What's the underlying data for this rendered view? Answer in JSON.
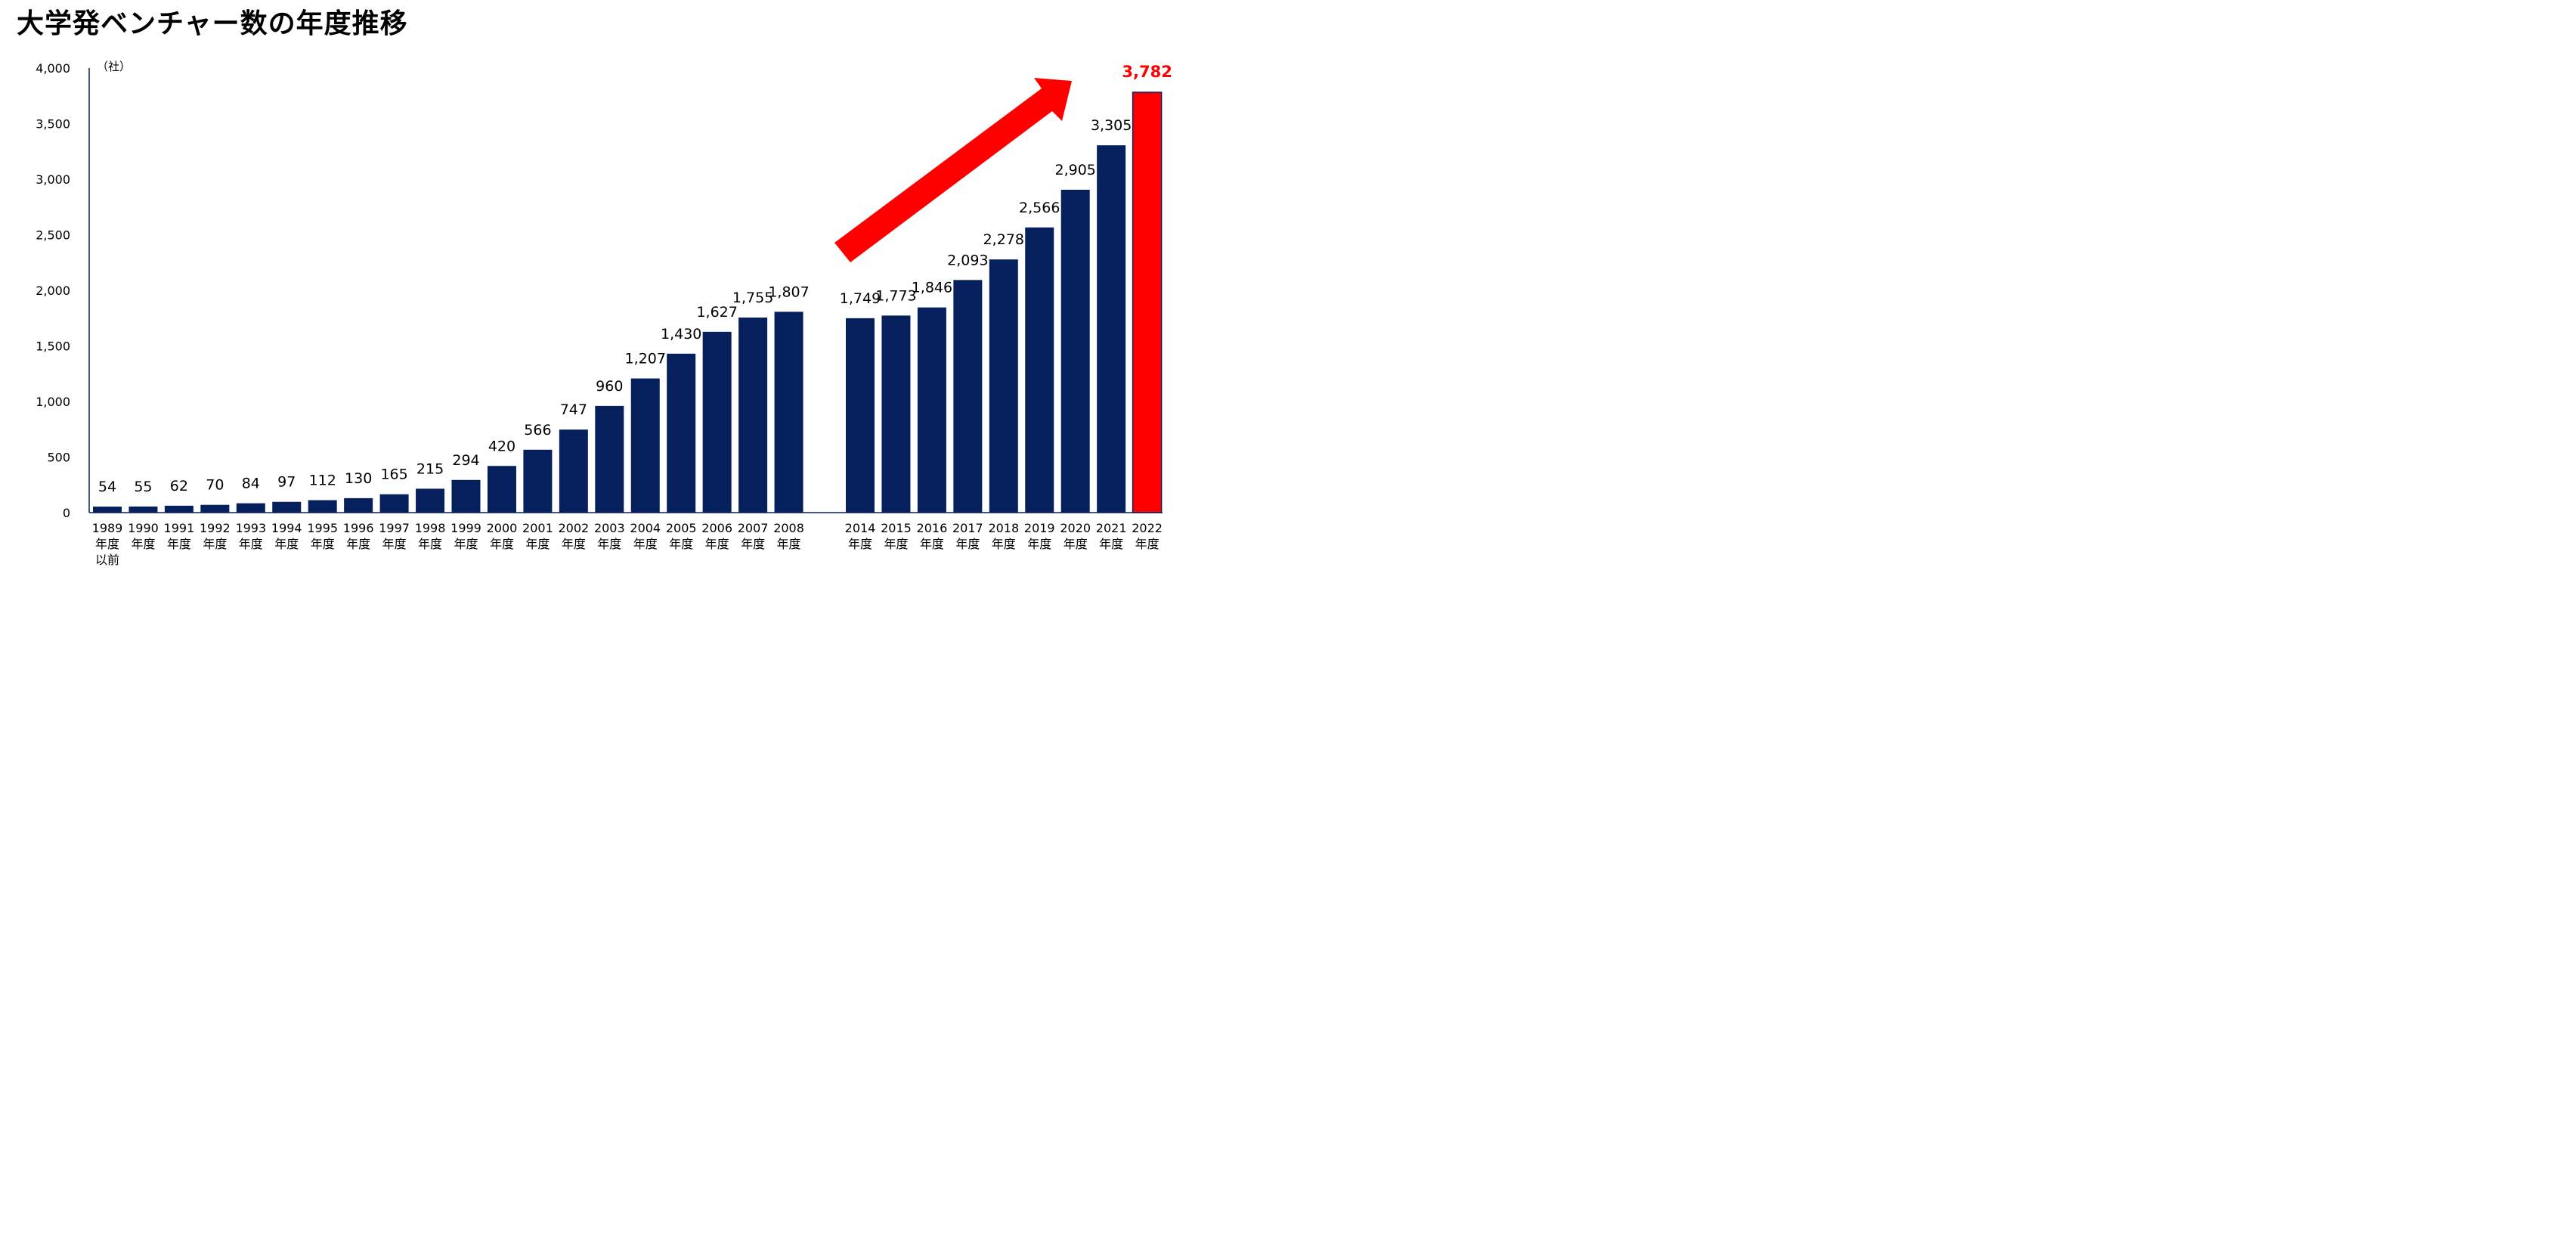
{
  "title": "大学発ベンチャー数の年度推移",
  "chart_data": {
    "type": "bar",
    "unit": "（社）",
    "ylim": [
      0,
      4000
    ],
    "yticks": [
      "0",
      "500",
      "1,000",
      "1,500",
      "2,000",
      "2,500",
      "3,000",
      "3,500",
      "4,000"
    ],
    "grid": false,
    "categories": [
      [
        "1989",
        "年度",
        "以前"
      ],
      [
        "1990",
        "年度"
      ],
      [
        "1991",
        "年度"
      ],
      [
        "1992",
        "年度"
      ],
      [
        "1993",
        "年度"
      ],
      [
        "1994",
        "年度"
      ],
      [
        "1995",
        "年度"
      ],
      [
        "1996",
        "年度"
      ],
      [
        "1997",
        "年度"
      ],
      [
        "1998",
        "年度"
      ],
      [
        "1999",
        "年度"
      ],
      [
        "2000",
        "年度"
      ],
      [
        "2001",
        "年度"
      ],
      [
        "2002",
        "年度"
      ],
      [
        "2003",
        "年度"
      ],
      [
        "2004",
        "年度"
      ],
      [
        "2005",
        "年度"
      ],
      [
        "2006",
        "年度"
      ],
      [
        "2007",
        "年度"
      ],
      [
        "2008",
        "年度"
      ],
      [
        "2014",
        "年度"
      ],
      [
        "2015",
        "年度"
      ],
      [
        "2016",
        "年度"
      ],
      [
        "2017",
        "年度"
      ],
      [
        "2018",
        "年度"
      ],
      [
        "2019",
        "年度"
      ],
      [
        "2020",
        "年度"
      ],
      [
        "2021",
        "年度"
      ],
      [
        "2022",
        "年度"
      ]
    ],
    "values": [
      54,
      55,
      62,
      70,
      84,
      97,
      112,
      130,
      165,
      215,
      294,
      420,
      566,
      747,
      960,
      1207,
      1430,
      1627,
      1755,
      1807,
      1749,
      1773,
      1846,
      2093,
      2278,
      2566,
      2905,
      3305,
      3782
    ],
    "value_labels": [
      "54",
      "55",
      "62",
      "70",
      "84",
      "97",
      "112",
      "130",
      "165",
      "215",
      "294",
      "420",
      "566",
      "747",
      "960",
      "1,207",
      "1,430",
      "1,627",
      "1,755",
      "1,807",
      "1,749",
      "1,773",
      "1,846",
      "2,093",
      "2,278",
      "2,566",
      "2,905",
      "3,305",
      "3,782"
    ],
    "highlight_index": 28,
    "colors": {
      "bar": "#06205e",
      "highlight": "#ff0000",
      "arrow": "#ff0000",
      "axis": "#06205e"
    }
  }
}
